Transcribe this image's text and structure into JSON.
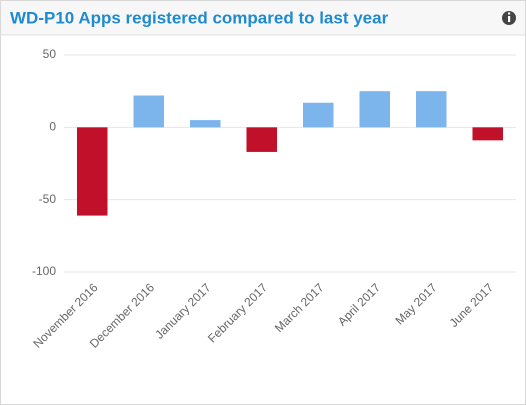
{
  "chart_data": {
    "type": "bar",
    "title": "WD-P10 Apps registered compared to last year",
    "categories": [
      "November 2016",
      "December 2016",
      "January 2017",
      "February 2017",
      "March 2017",
      "April 2017",
      "May 2017",
      "June 2017"
    ],
    "values": [
      -61,
      22,
      5,
      -17,
      17,
      25,
      25,
      -9
    ],
    "color": "#7cb5ec",
    "negative_color": "#c0102a",
    "ylim": [
      -100,
      50
    ],
    "yticks": [
      -100,
      -50,
      0,
      50
    ],
    "grid": true
  }
}
